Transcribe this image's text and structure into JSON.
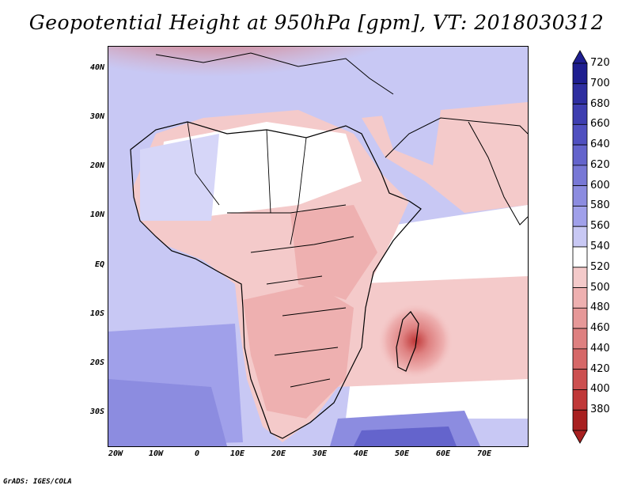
{
  "title": "Geopotential Height at 950hPa [gpm], VT: 2018030312",
  "credit": "GrADS: IGES/COLA",
  "map": {
    "lat_labels": [
      "40N",
      "30N",
      "20N",
      "10N",
      "EQ",
      "10S",
      "20S",
      "30S"
    ],
    "lon_labels": [
      "20W",
      "10W",
      "0",
      "10E",
      "20E",
      "30E",
      "40E",
      "50E",
      "60E",
      "70E"
    ]
  },
  "colorbar": {
    "levels": [
      "720",
      "700",
      "680",
      "660",
      "640",
      "620",
      "600",
      "580",
      "560",
      "540",
      "520",
      "500",
      "480",
      "460",
      "440",
      "420",
      "400",
      "380"
    ],
    "colors": [
      "#1e1e90",
      "#2e2ea0",
      "#3e3eb0",
      "#5050c0",
      "#6464cc",
      "#7878d6",
      "#8c8ce0",
      "#a0a0ea",
      "#c8c8f4",
      "#ffffff",
      "#f4caca",
      "#eeb0b0",
      "#e69898",
      "#de8080",
      "#d66868",
      "#cc5050",
      "#c03838",
      "#a82020"
    ]
  }
}
